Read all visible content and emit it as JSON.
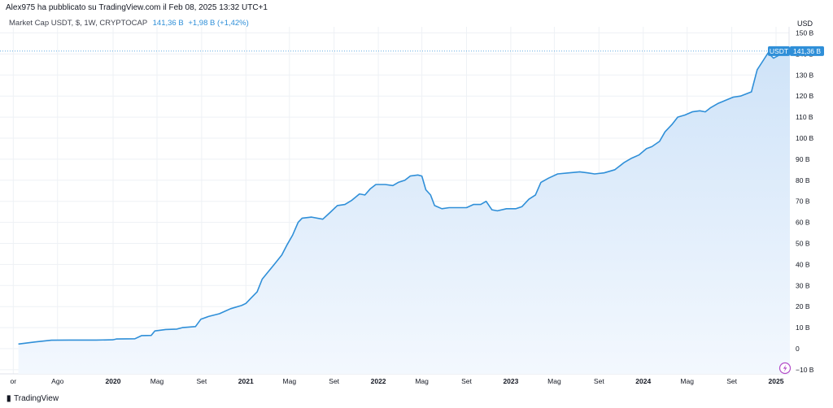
{
  "header": {
    "published_by": "Alex975 ha pubblicato su TradingView.com il Feb 08, 2025 13:32 UTC+1"
  },
  "legend": {
    "symbol": "Market Cap USDT, $, 1W, CRYPTOCAP",
    "value": "141,36 B",
    "change": "+1,98 B (+1,42%)"
  },
  "axis": {
    "currency": "USD"
  },
  "last_price": {
    "ticker": "USDT",
    "value": "141,36 B"
  },
  "footer": {
    "logo_text": "TradingView"
  },
  "colors": {
    "line": "#2f8fd8",
    "fill_top": "#cfe3f8",
    "fill_bottom": "#f3f8fe",
    "badge": "#2f8fd8",
    "grid": "#eef1f5",
    "alert": "#b34dc8"
  },
  "chart_data": {
    "type": "area",
    "title": "",
    "xlabel": "",
    "ylabel": "",
    "y_unit": "B USD",
    "ylim": [
      -10,
      150
    ],
    "y_ticks": [
      -10,
      0,
      10,
      20,
      30,
      40,
      50,
      60,
      70,
      80,
      90,
      100,
      110,
      120,
      130,
      140,
      150
    ],
    "y_tick_labels": [
      "−10 B",
      "0",
      "10 B",
      "20 B",
      "30 B",
      "40 B",
      "50 B",
      "60 B",
      "70 B",
      "80 B",
      "90 B",
      "100 B",
      "110 B",
      "120 B",
      "130 B",
      "140 B",
      "150 B"
    ],
    "x_range": [
      "2019-04-15",
      "2025-03-01"
    ],
    "x_ticks": [
      {
        "date": "2019-04-01",
        "label": "or"
      },
      {
        "date": "2019-08-01",
        "label": "Ago"
      },
      {
        "date": "2020-01-01",
        "label": "2020"
      },
      {
        "date": "2020-05-01",
        "label": "Mag"
      },
      {
        "date": "2020-09-01",
        "label": "Set"
      },
      {
        "date": "2021-01-01",
        "label": "2021"
      },
      {
        "date": "2021-05-01",
        "label": "Mag"
      },
      {
        "date": "2021-09-01",
        "label": "Set"
      },
      {
        "date": "2022-01-01",
        "label": "2022"
      },
      {
        "date": "2022-05-01",
        "label": "Mag"
      },
      {
        "date": "2022-09-01",
        "label": "Set"
      },
      {
        "date": "2023-01-01",
        "label": "2023"
      },
      {
        "date": "2023-05-01",
        "label": "Mag"
      },
      {
        "date": "2023-09-01",
        "label": "Set"
      },
      {
        "date": "2024-01-01",
        "label": "2024"
      },
      {
        "date": "2024-05-01",
        "label": "Mag"
      },
      {
        "date": "2024-09-01",
        "label": "Set"
      },
      {
        "date": "2025-01-01",
        "label": "2025"
      }
    ],
    "series": [
      {
        "points": [
          [
            "2019-04-15",
            2.2
          ],
          [
            "2019-06-01",
            3.2
          ],
          [
            "2019-07-15",
            4.0
          ],
          [
            "2019-09-01",
            4.1
          ],
          [
            "2019-11-15",
            4.1
          ],
          [
            "2019-12-31",
            4.2
          ],
          [
            "2020-01-10",
            4.6
          ],
          [
            "2020-03-01",
            4.7
          ],
          [
            "2020-03-20",
            6.2
          ],
          [
            "2020-04-15",
            6.3
          ],
          [
            "2020-04-25",
            8.4
          ],
          [
            "2020-05-25",
            9.1
          ],
          [
            "2020-06-25",
            9.3
          ],
          [
            "2020-07-10",
            10.0
          ],
          [
            "2020-08-15",
            10.5
          ],
          [
            "2020-08-30",
            14.0
          ],
          [
            "2020-09-20",
            15.3
          ],
          [
            "2020-10-20",
            16.6
          ],
          [
            "2020-11-20",
            19.0
          ],
          [
            "2020-12-20",
            20.5
          ],
          [
            "2021-01-01",
            21.5
          ],
          [
            "2021-01-15",
            24.0
          ],
          [
            "2021-02-01",
            27.0
          ],
          [
            "2021-02-15",
            33.0
          ],
          [
            "2021-03-01",
            36.0
          ],
          [
            "2021-03-20",
            40.0
          ],
          [
            "2021-04-10",
            44.5
          ],
          [
            "2021-04-25",
            49.5
          ],
          [
            "2021-05-10",
            54.0
          ],
          [
            "2021-05-25",
            60.0
          ],
          [
            "2021-06-05",
            62.0
          ],
          [
            "2021-07-01",
            62.5
          ],
          [
            "2021-08-01",
            61.5
          ],
          [
            "2021-08-20",
            64.5
          ],
          [
            "2021-09-10",
            68.0
          ],
          [
            "2021-10-01",
            68.5
          ],
          [
            "2021-10-20",
            70.5
          ],
          [
            "2021-11-10",
            73.5
          ],
          [
            "2021-11-25",
            73.0
          ],
          [
            "2021-12-10",
            76.0
          ],
          [
            "2021-12-25",
            78.0
          ],
          [
            "2022-01-20",
            78.0
          ],
          [
            "2022-02-10",
            77.5
          ],
          [
            "2022-02-25",
            79.0
          ],
          [
            "2022-03-15",
            80.0
          ],
          [
            "2022-03-30",
            82.0
          ],
          [
            "2022-04-20",
            82.5
          ],
          [
            "2022-05-01",
            82.0
          ],
          [
            "2022-05-12",
            75.5
          ],
          [
            "2022-05-25",
            73.0
          ],
          [
            "2022-06-05",
            68.0
          ],
          [
            "2022-06-25",
            66.5
          ],
          [
            "2022-07-15",
            67.0
          ],
          [
            "2022-08-01",
            67.0
          ],
          [
            "2022-09-01",
            67.0
          ],
          [
            "2022-09-20",
            68.5
          ],
          [
            "2022-10-10",
            68.5
          ],
          [
            "2022-10-25",
            70.0
          ],
          [
            "2022-11-10",
            66.0
          ],
          [
            "2022-11-25",
            65.5
          ],
          [
            "2022-12-20",
            66.5
          ],
          [
            "2023-01-15",
            66.5
          ],
          [
            "2023-02-01",
            67.5
          ],
          [
            "2023-02-20",
            71.0
          ],
          [
            "2023-03-10",
            73.0
          ],
          [
            "2023-03-25",
            79.0
          ],
          [
            "2023-04-15",
            81.0
          ],
          [
            "2023-05-10",
            83.0
          ],
          [
            "2023-06-10",
            83.5
          ],
          [
            "2023-07-10",
            84.0
          ],
          [
            "2023-08-01",
            83.5
          ],
          [
            "2023-08-20",
            83.0
          ],
          [
            "2023-09-15",
            83.5
          ],
          [
            "2023-10-15",
            85.0
          ],
          [
            "2023-11-10",
            88.5
          ],
          [
            "2023-11-30",
            90.5
          ],
          [
            "2023-12-20",
            92.0
          ],
          [
            "2024-01-10",
            95.0
          ],
          [
            "2024-01-25",
            96.0
          ],
          [
            "2024-02-15",
            98.5
          ],
          [
            "2024-03-01",
            103.0
          ],
          [
            "2024-03-20",
            106.5
          ],
          [
            "2024-04-05",
            110.0
          ],
          [
            "2024-04-25",
            111.0
          ],
          [
            "2024-05-15",
            112.5
          ],
          [
            "2024-06-05",
            113.0
          ],
          [
            "2024-06-20",
            112.5
          ],
          [
            "2024-07-05",
            114.5
          ],
          [
            "2024-07-25",
            116.5
          ],
          [
            "2024-08-15",
            118.0
          ],
          [
            "2024-09-05",
            119.5
          ],
          [
            "2024-09-25",
            120.0
          ],
          [
            "2024-10-10",
            121.0
          ],
          [
            "2024-10-25",
            122.0
          ],
          [
            "2024-11-10",
            132.5
          ],
          [
            "2024-11-25",
            136.5
          ],
          [
            "2024-12-10",
            140.5
          ],
          [
            "2024-12-25",
            138.0
          ],
          [
            "2025-01-10",
            139.5
          ],
          [
            "2025-01-25",
            140.5
          ],
          [
            "2025-02-08",
            141.4
          ]
        ]
      }
    ],
    "grid": true,
    "last_value": 141.36
  }
}
